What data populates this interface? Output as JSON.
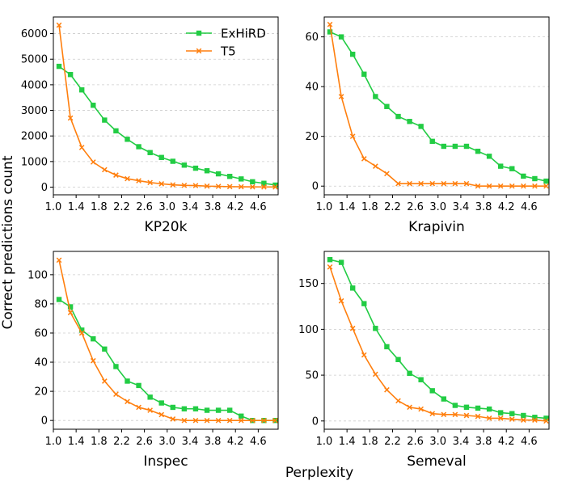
{
  "figure": {
    "ylabel": "Correct predictions count",
    "xlabel": "Perplexity"
  },
  "colors": {
    "ExHiRD": "#22cc44",
    "T5": "#ff7f0e"
  },
  "legend": {
    "placement": "upper-right of first panel",
    "entries": [
      "ExHiRD",
      "T5"
    ]
  },
  "chart_data": [
    {
      "type": "line",
      "title": "",
      "xlabel": "KP20k",
      "ylabel": "",
      "grid": "horizontal dashed",
      "xlim": [
        1.0,
        4.95
      ],
      "ylim": [
        -300,
        6650
      ],
      "xticks": [
        "1.0",
        "1.4",
        "1.8",
        "2.2",
        "2.6",
        "3.0",
        "3.4",
        "3.8",
        "4.2",
        "4.6"
      ],
      "yticks": [
        "0",
        "1000",
        "2000",
        "3000",
        "4000",
        "5000",
        "6000"
      ],
      "x": [
        1.1,
        1.3,
        1.5,
        1.7,
        1.9,
        2.1,
        2.3,
        2.5,
        2.7,
        2.9,
        3.1,
        3.3,
        3.5,
        3.7,
        3.9,
        4.1,
        4.3,
        4.5,
        4.7,
        4.9
      ],
      "series": [
        {
          "name": "ExHiRD",
          "marker": "square",
          "values": [
            4720,
            4400,
            3800,
            3200,
            2620,
            2200,
            1870,
            1580,
            1350,
            1160,
            1010,
            860,
            740,
            640,
            520,
            420,
            320,
            210,
            150,
            80
          ]
        },
        {
          "name": "T5",
          "marker": "x",
          "values": [
            6330,
            2700,
            1550,
            980,
            680,
            470,
            330,
            250,
            180,
            130,
            90,
            70,
            60,
            40,
            30,
            20,
            15,
            10,
            8,
            5
          ]
        }
      ]
    },
    {
      "type": "line",
      "title": "",
      "xlabel": "Krapivin",
      "ylabel": "",
      "grid": "horizontal dashed",
      "xlim": [
        1.0,
        4.95
      ],
      "ylim": [
        -3.5,
        68
      ],
      "xticks": [
        "1.0",
        "1.4",
        "1.8",
        "2.2",
        "2.6",
        "3.0",
        "3.4",
        "3.8",
        "4.2",
        "4.6"
      ],
      "yticks": [
        "0",
        "20",
        "40",
        "60"
      ],
      "x": [
        1.1,
        1.3,
        1.5,
        1.7,
        1.9,
        2.1,
        2.3,
        2.5,
        2.7,
        2.9,
        3.1,
        3.3,
        3.5,
        3.7,
        3.9,
        4.1,
        4.3,
        4.5,
        4.7,
        4.9
      ],
      "series": [
        {
          "name": "ExHiRD",
          "marker": "square",
          "values": [
            62,
            60,
            53,
            45,
            36,
            32,
            28,
            26,
            24,
            18,
            16,
            16,
            16,
            14,
            12,
            8,
            7,
            4,
            3,
            2
          ]
        },
        {
          "name": "T5",
          "marker": "x",
          "values": [
            65,
            36,
            20,
            11,
            8,
            5,
            1,
            1,
            1,
            1,
            1,
            1,
            1,
            0,
            0,
            0,
            0,
            0,
            0,
            0
          ]
        }
      ]
    },
    {
      "type": "line",
      "title": "",
      "xlabel": "Inspec",
      "ylabel": "",
      "grid": "horizontal dashed",
      "xlim": [
        1.0,
        4.95
      ],
      "ylim": [
        -6,
        116
      ],
      "xticks": [
        "1.0",
        "1.4",
        "1.8",
        "2.2",
        "2.6",
        "3.0",
        "3.4",
        "3.8",
        "4.2",
        "4.6"
      ],
      "yticks": [
        "0",
        "20",
        "40",
        "60",
        "80",
        "100"
      ],
      "x": [
        1.1,
        1.3,
        1.5,
        1.7,
        1.9,
        2.1,
        2.3,
        2.5,
        2.7,
        2.9,
        3.1,
        3.3,
        3.5,
        3.7,
        3.9,
        4.1,
        4.3,
        4.5,
        4.7,
        4.9
      ],
      "series": [
        {
          "name": "ExHiRD",
          "marker": "square",
          "values": [
            83,
            78,
            62,
            56,
            49,
            37,
            27,
            24,
            16,
            12,
            9,
            8,
            8,
            7,
            7,
            7,
            3,
            0,
            0,
            0
          ]
        },
        {
          "name": "T5",
          "marker": "x",
          "values": [
            110,
            74,
            60,
            41,
            27,
            18,
            13,
            9,
            7,
            4,
            1,
            0,
            0,
            0,
            0,
            0,
            0,
            0,
            0,
            0
          ]
        }
      ]
    },
    {
      "type": "line",
      "title": "",
      "xlabel": "Semeval",
      "ylabel": "",
      "grid": "horizontal dashed",
      "xlim": [
        1.0,
        4.95
      ],
      "ylim": [
        -9,
        185
      ],
      "xticks": [
        "1.0",
        "1.4",
        "1.8",
        "2.2",
        "2.6",
        "3.0",
        "3.4",
        "3.8",
        "4.2",
        "4.6"
      ],
      "yticks": [
        "0",
        "50",
        "100",
        "150"
      ],
      "x": [
        1.1,
        1.3,
        1.5,
        1.7,
        1.9,
        2.1,
        2.3,
        2.5,
        2.7,
        2.9,
        3.1,
        3.3,
        3.5,
        3.7,
        3.9,
        4.1,
        4.3,
        4.5,
        4.7,
        4.9
      ],
      "series": [
        {
          "name": "ExHiRD",
          "marker": "square",
          "values": [
            176,
            173,
            145,
            128,
            101,
            81,
            67,
            52,
            45,
            33,
            24,
            17,
            15,
            14,
            13,
            9,
            8,
            6,
            4,
            3
          ]
        },
        {
          "name": "T5",
          "marker": "x",
          "values": [
            168,
            131,
            101,
            72,
            51,
            34,
            22,
            15,
            13,
            8,
            7,
            7,
            6,
            5,
            3,
            3,
            2,
            1,
            1,
            0
          ]
        }
      ]
    }
  ]
}
